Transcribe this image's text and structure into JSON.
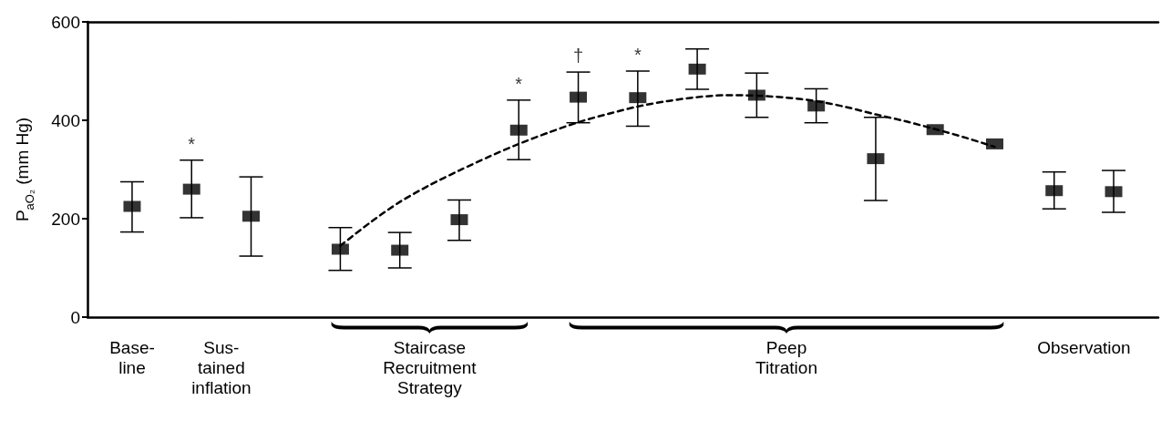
{
  "chart_data": {
    "type": "scatter",
    "ylabel": "P$_{aO₂}$ (mm Hg)",
    "marker": "square",
    "grid": false,
    "categories": [
      null,
      "Base-\nline",
      null,
      null,
      "Sus-\ntained\ninflation",
      null,
      null,
      null,
      null,
      null,
      null,
      "Staircase\nRecruitment\nStrategy",
      null,
      null,
      null,
      null,
      null,
      null,
      null,
      null,
      null,
      null,
      null,
      "Peep\nTitration",
      null,
      null,
      null,
      null,
      null,
      null,
      null,
      null,
      null,
      "Observation",
      null,
      null
    ],
    "ylim": [
      0,
      600
    ],
    "yticks": [
      0,
      200,
      400,
      600
    ],
    "series": [
      {
        "color": "#000000",
        "values": [
          null,
          225,
          null,
          260,
          null,
          205,
          null,
          null,
          138,
          null,
          136,
          null,
          198,
          null,
          380,
          null,
          447,
          null,
          446,
          null,
          504,
          null,
          451,
          null,
          429,
          null,
          322,
          null,
          381,
          null,
          352,
          null,
          257,
          null,
          255,
          null
        ],
        "errors": [
          null,
          [
            173,
            275
          ],
          null,
          [
            202,
            319
          ],
          null,
          [
            124,
            285
          ],
          null,
          null,
          [
            95,
            182
          ],
          null,
          [
            100,
            172
          ],
          null,
          [
            156,
            238
          ],
          null,
          [
            320,
            441
          ],
          null,
          [
            395,
            498
          ],
          null,
          [
            388,
            500
          ],
          null,
          [
            463,
            545
          ],
          null,
          [
            406,
            496
          ],
          null,
          [
            395,
            464
          ],
          null,
          [
            237,
            406
          ],
          null,
          null,
          null,
          null,
          null,
          [
            220,
            295
          ],
          null,
          [
            213,
            298
          ],
          null
        ],
        "value_labels": [
          null,
          null,
          null,
          "*",
          null,
          null,
          null,
          null,
          null,
          null,
          null,
          null,
          null,
          null,
          "*",
          null,
          "†",
          null,
          "*",
          null,
          null,
          null,
          null,
          null,
          null,
          null,
          null,
          null,
          null,
          null,
          null,
          null,
          null,
          null,
          null,
          null
        ]
      },
      {
        "type": "line",
        "color": "#000000",
        "line_style": "dashed",
        "marker": "none",
        "values": [
          null,
          null,
          null,
          null,
          null,
          null,
          null,
          null,
          145,
          192,
          234,
          268,
          298,
          326,
          352,
          375,
          396,
          413,
          428,
          439,
          447,
          451,
          450,
          446,
          439,
          427,
          412,
          398,
          382,
          365,
          346,
          null,
          null,
          null,
          null,
          null
        ]
      }
    ]
  }
}
